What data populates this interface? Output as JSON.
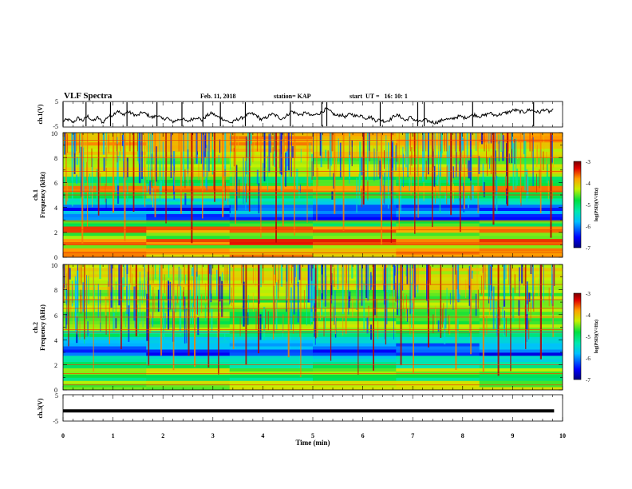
{
  "header": {
    "title": "VLF Spectra",
    "date": "Feb. 11, 2018",
    "station": "station= KAP",
    "start": "start  UT =   16: 10: 1"
  },
  "chart_data": [
    {
      "id": "ch1_waveform",
      "type": "line",
      "ylabel": "ch.1(V)",
      "yticks": [
        "5",
        "-5"
      ],
      "ylim": [
        -5,
        5
      ],
      "xlim": [
        0,
        10
      ],
      "series": [
        {
          "x_range": [
            0,
            9.83
          ],
          "values": [
            -2.8,
            -2.2,
            -3.4,
            -1.6,
            -2.6,
            -0.8,
            -2.9,
            -1.3,
            -3.5,
            -1.0,
            -0.3,
            1.6,
            -0.4,
            1.1,
            0.2,
            -0.7,
            0.9,
            -0.2,
            -1.4,
            -0.3,
            -2.1,
            -1.5,
            -3.2,
            -2.4,
            -1.8,
            -3.1,
            -2.0,
            -1.2,
            -2.5,
            -0.6,
            0.5,
            -0.9,
            -1.7,
            -2.8,
            -3.6,
            -2.2,
            -1.6,
            -0.4,
            0.3,
            -0.5,
            -2.3,
            -1.4,
            0.1,
            -0.6,
            -1.9,
            -0.8,
            1.3,
            0.4,
            -0.3,
            0.8,
            -0.7,
            -0.1,
            0.7,
            2.2,
            1.0,
            -0.6,
            -0.2,
            -1.1,
            0.3,
            -0.8,
            -0.4,
            -1.6,
            -1.1,
            -2.6,
            -2.3,
            -3.0,
            -2.1,
            -0.3,
            -0.9,
            -2.7,
            -1.2,
            -2.5,
            -3.1,
            -2.4,
            -3.0,
            -3.5,
            -2.9,
            -1.9,
            -2.3,
            -1.4,
            -0.8,
            -1.5,
            -0.6,
            -0.2,
            -0.9,
            -0.5,
            0.6,
            -0.4,
            -0.1,
            0.5,
            1.0,
            1.8,
            1.2,
            0.9,
            1.9,
            1.4,
            0.7,
            2.0,
            1.1,
            1.6
          ]
        }
      ],
      "dropouts_x": [
        0.0,
        0.46,
        0.95,
        1.28,
        1.88,
        2.38,
        2.8,
        3.15,
        3.65,
        4.55,
        5.18,
        5.28,
        6.35,
        7.1,
        7.23,
        8.2,
        9.42
      ],
      "grid": false
    },
    {
      "id": "ch1_spectrogram",
      "type": "heatmap",
      "channel": "ch.1",
      "ylabel": "Frequency  (kHz)",
      "ylim": [
        0,
        10
      ],
      "yticks": [
        "0",
        "2",
        "4",
        "6",
        "8",
        "10"
      ],
      "xlim": [
        0,
        10
      ],
      "bands_khz": [
        {
          "f": 0.35,
          "v": -4.1
        },
        {
          "f": 0.8,
          "v": -4.8
        },
        {
          "f": 1.0,
          "v": -3.8
        },
        {
          "f": 1.5,
          "v": -4.7
        },
        {
          "f": 2.2,
          "v": -3.9
        },
        {
          "f": 2.6,
          "v": -5.0
        },
        {
          "f": 3.0,
          "v": -6.3
        },
        {
          "f": 3.5,
          "v": -6.0
        },
        {
          "f": 3.9,
          "v": -6.4
        },
        {
          "f": 4.4,
          "v": -5.6
        },
        {
          "f": 5.0,
          "v": -4.9
        },
        {
          "f": 5.3,
          "v": -3.9
        },
        {
          "f": 6.0,
          "v": -5.0
        },
        {
          "f": 6.6,
          "v": -4.4
        },
        {
          "f": 7.4,
          "v": -4.6
        },
        {
          "f": 8.3,
          "v": -4.3
        },
        {
          "f": 9.3,
          "v": -4.1
        }
      ],
      "line_khz": [
        0.35,
        1.0,
        2.2,
        2.9,
        5.0,
        5.3,
        6.9,
        8.0,
        9.4
      ],
      "impulse_x_min": [
        0.05,
        0.37,
        0.48,
        0.7,
        0.99,
        1.22,
        1.4,
        1.63,
        1.83,
        2.05,
        2.35,
        2.56,
        2.78,
        3.02,
        3.18,
        3.44,
        3.72,
        3.95,
        4.25,
        4.39,
        4.62,
        4.88,
        5.07,
        5.42,
        5.6,
        6.0,
        6.36,
        6.56,
        6.72,
        7.03,
        7.1,
        7.38,
        7.75,
        7.94,
        8.02,
        8.3,
        8.6,
        8.88,
        9.15,
        9.55,
        9.75
      ],
      "colorbar": {
        "label": "log(PSD)(V²/Hz)",
        "ticks": [
          "-3",
          "-4",
          "-5",
          "-6",
          "-7"
        ],
        "range": [
          -7,
          -3
        ]
      }
    },
    {
      "id": "ch2_spectrogram",
      "type": "heatmap",
      "channel": "ch.2",
      "ylabel": "Frequency  (kHz)",
      "ylim": [
        0,
        10
      ],
      "yticks": [
        "0",
        "2",
        "4",
        "6",
        "8",
        "10"
      ],
      "xlim": [
        0,
        10
      ],
      "bands_khz": [
        {
          "f": 0.4,
          "v": -4.6
        },
        {
          "f": 0.9,
          "v": -5.2
        },
        {
          "f": 1.3,
          "v": -4.6
        },
        {
          "f": 1.8,
          "v": -5.3
        },
        {
          "f": 2.4,
          "v": -5.7
        },
        {
          "f": 2.8,
          "v": -6.4
        },
        {
          "f": 3.3,
          "v": -6.1
        },
        {
          "f": 3.8,
          "v": -5.8
        },
        {
          "f": 4.4,
          "v": -5.3
        },
        {
          "f": 4.8,
          "v": -4.6
        },
        {
          "f": 5.6,
          "v": -4.8
        },
        {
          "f": 6.5,
          "v": -4.6
        },
        {
          "f": 7.4,
          "v": -4.7
        },
        {
          "f": 8.4,
          "v": -4.5
        },
        {
          "f": 9.4,
          "v": -4.4
        }
      ],
      "line_khz": [
        0.4,
        1.3,
        2.0,
        4.6,
        4.8,
        5.8,
        6.5,
        7.2,
        8.4
      ],
      "impulse_x_min": [
        0.1,
        0.42,
        0.6,
        0.92,
        1.15,
        1.45,
        1.7,
        1.95,
        2.2,
        2.5,
        2.62,
        2.9,
        3.1,
        3.4,
        3.65,
        3.9,
        4.2,
        4.5,
        4.75,
        5.05,
        5.35,
        5.65,
        5.9,
        6.2,
        6.45,
        6.75,
        7.0,
        7.3,
        7.55,
        7.85,
        8.15,
        8.4,
        8.7,
        8.95,
        9.25,
        9.55,
        9.8
      ],
      "colorbar": {
        "label": "log(PSD)(V²/Hz)",
        "ticks": [
          "-3",
          "-4",
          "-5",
          "-6",
          "-7"
        ],
        "range": [
          -7,
          -3
        ]
      }
    },
    {
      "id": "ch3_waveform",
      "type": "line",
      "ylabel": "ch.3(V)",
      "yticks": [
        "5",
        "-5"
      ],
      "ylim": [
        -5,
        5
      ],
      "xlim": [
        0,
        10
      ],
      "series": [
        {
          "x_range": [
            0,
            9.83
          ],
          "values": [
            -1.2,
            -1.2
          ]
        }
      ]
    }
  ],
  "xaxis": {
    "label": "Time  (min)",
    "ticks": [
      "0",
      "1",
      "2",
      "3",
      "4",
      "5",
      "6",
      "7",
      "8",
      "9",
      "10"
    ],
    "range": [
      0,
      10
    ]
  },
  "colormap": [
    "#000080",
    "#0000ff",
    "#00bfff",
    "#00e8b0",
    "#00e040",
    "#c8f000",
    "#ffa000",
    "#e00000",
    "#7a0000"
  ]
}
